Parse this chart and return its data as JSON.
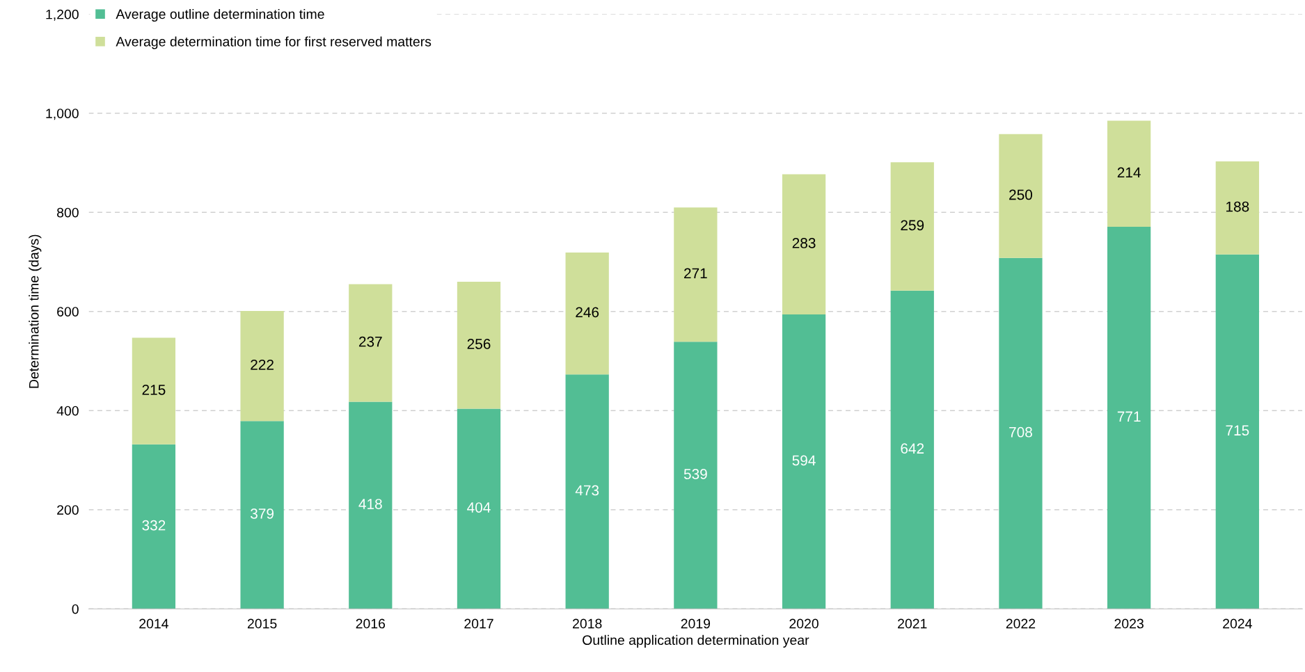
{
  "chart_data": {
    "type": "bar",
    "stacked": true,
    "xlabel": "Outline application determination year",
    "ylabel": "Determination time (days)",
    "categories": [
      "2014",
      "2015",
      "2016",
      "2017",
      "2018",
      "2019",
      "2020",
      "2021",
      "2022",
      "2023",
      "2024"
    ],
    "series": [
      {
        "name": "Average outline determination time",
        "color": "#52be94",
        "values": [
          332,
          379,
          418,
          404,
          473,
          539,
          594,
          642,
          708,
          771,
          715
        ]
      },
      {
        "name": "Average determination time for first reserved matters",
        "color": "#cfdf9a",
        "values": [
          215,
          222,
          237,
          256,
          246,
          271,
          283,
          259,
          250,
          214,
          188
        ]
      }
    ],
    "ylim": [
      0,
      1200
    ],
    "yticks": [
      0,
      200,
      400,
      600,
      800,
      {
        "value": 1000,
        "label": "1,000"
      },
      {
        "value": 1200,
        "label": "1,200"
      }
    ],
    "grid": "y",
    "legend": "top left",
    "data_labels": true
  }
}
